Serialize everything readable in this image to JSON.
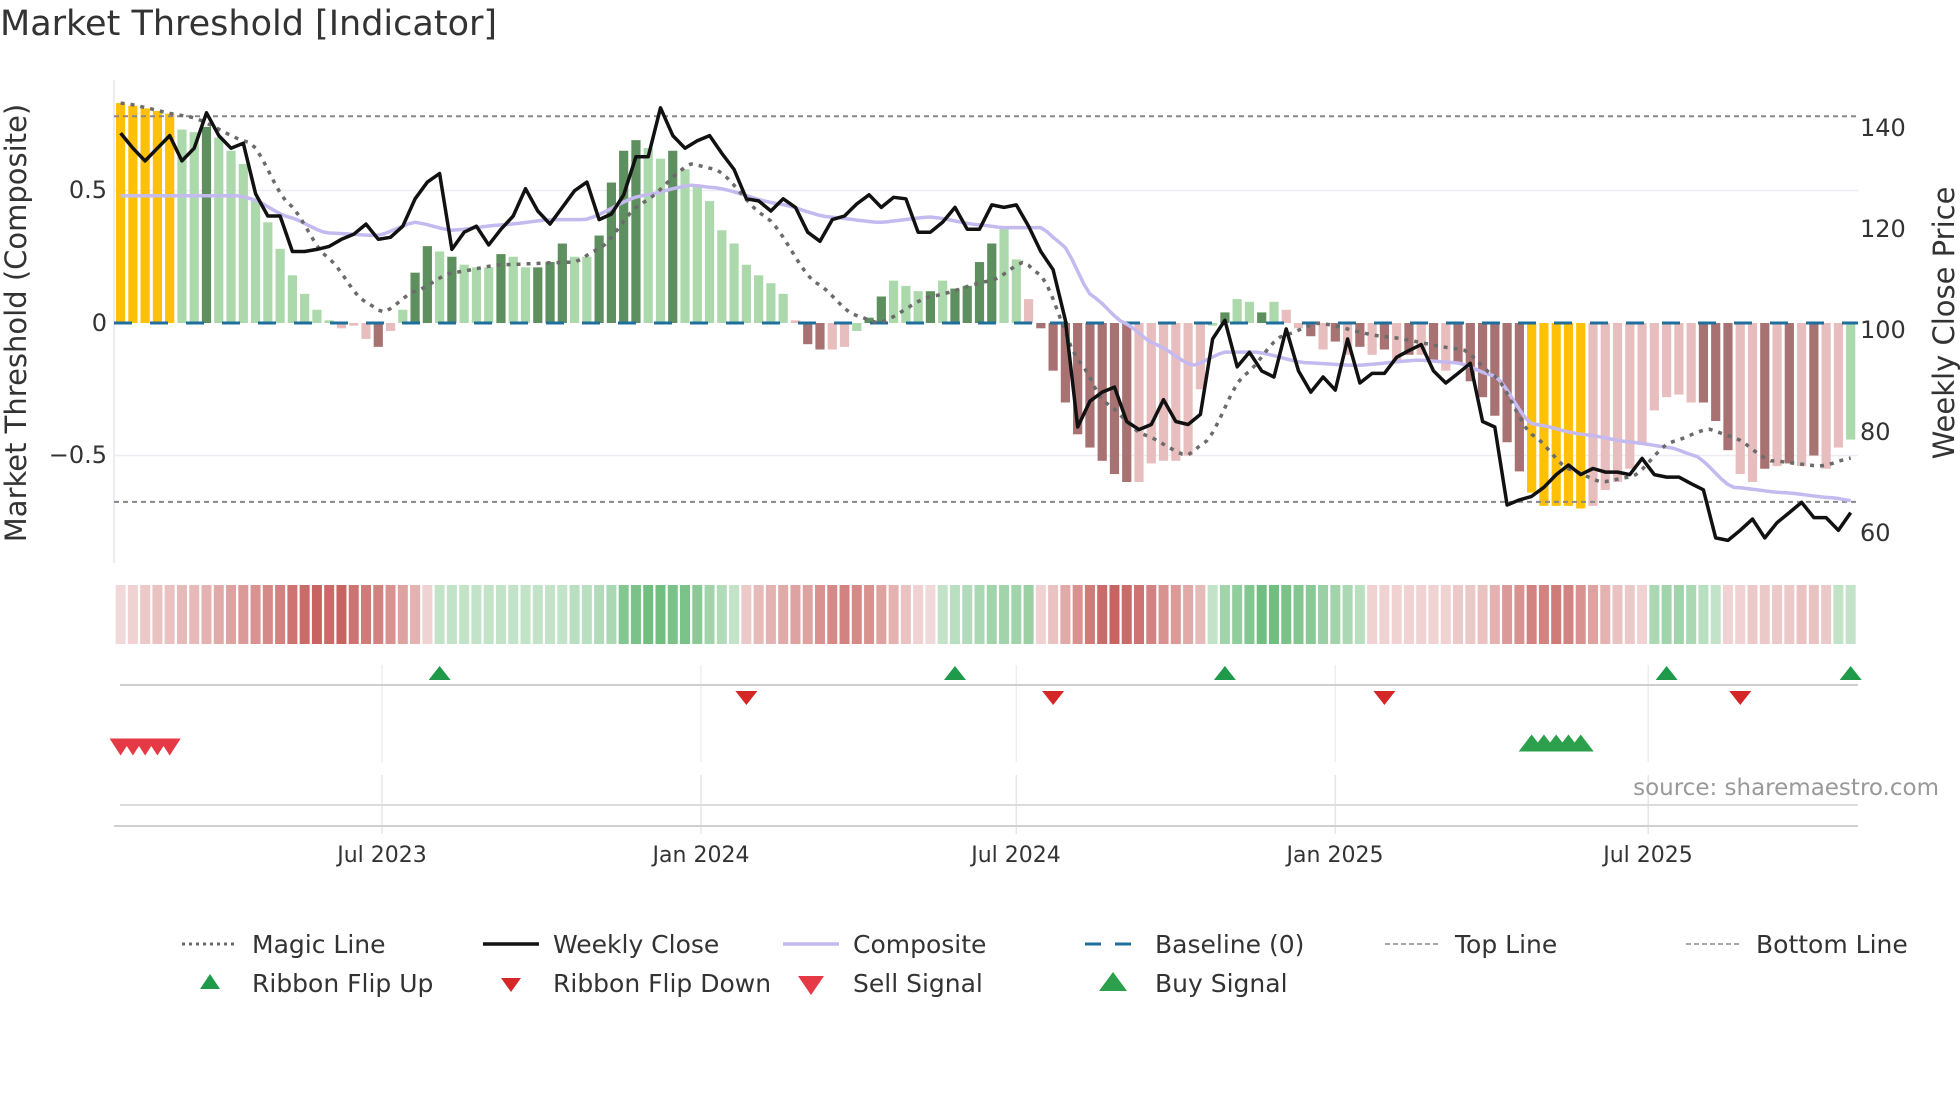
{
  "title": "Market Threshold [Indicator]",
  "source": "source: sharemaestro.com",
  "colors": {
    "extreme": "#ffc107",
    "strong_up": "#5e8f5e",
    "up": "#acd9ac",
    "strong_down": "#a87272",
    "down": "#e8bdbd",
    "close": "#111111",
    "composite_line": "#c4baf0",
    "magic": "#6b6b6b",
    "baseline": "#1f6f9c",
    "ribbon_red": "#c0504d",
    "ribbon_green": "#4fae62",
    "flip_up": "#1e9a4a",
    "flip_down": "#d62728",
    "sell": "#e63946",
    "buy": "#2ca04c"
  },
  "chart_data": {
    "type": "bar",
    "title": "Market Threshold [Indicator]",
    "x_unit": "week index (weekly bars)",
    "ylabel": "Market Threshold (Composite)",
    "y2label": "Weekly Close Price",
    "ylim": [
      -0.9,
      0.9
    ],
    "y2lim": [
      55,
      145
    ],
    "y_ticks": [
      {
        "v": 0.5,
        "label": "0.5"
      },
      {
        "v": 0,
        "label": "0"
      },
      {
        "v": -0.5,
        "label": "−0.5"
      }
    ],
    "y2_ticks": [
      {
        "v": 140,
        "label": "140"
      },
      {
        "v": 120,
        "label": "120"
      },
      {
        "v": 100,
        "label": "100"
      },
      {
        "v": 80,
        "label": "80"
      },
      {
        "v": 60,
        "label": "60"
      }
    ],
    "x_ticks": [
      {
        "week": 21.3,
        "label": "Jul 2023"
      },
      {
        "week": 47.3,
        "label": "Jan 2024"
      },
      {
        "week": 73.0,
        "label": "Jul 2024"
      },
      {
        "week": 99.0,
        "label": "Jan 2025"
      },
      {
        "week": 124.5,
        "label": "Jul 2025"
      }
    ],
    "top_line": 0.78,
    "bottom_line": -0.675,
    "baseline": 0,
    "composite_bars": [
      0.83,
      0.82,
      0.81,
      0.8,
      0.79,
      0.73,
      0.72,
      0.74,
      0.7,
      0.65,
      0.6,
      0.47,
      0.38,
      0.28,
      0.18,
      0.11,
      0.05,
      0.01,
      -0.02,
      -0.01,
      -0.06,
      -0.09,
      -0.03,
      0.05,
      0.19,
      0.29,
      0.27,
      0.25,
      0.22,
      0.21,
      0.21,
      0.26,
      0.25,
      0.21,
      0.21,
      0.23,
      0.3,
      0.25,
      0.25,
      0.33,
      0.53,
      0.65,
      0.69,
      0.66,
      0.62,
      0.65,
      0.58,
      0.52,
      0.46,
      0.35,
      0.3,
      0.22,
      0.18,
      0.15,
      0.11,
      0.01,
      -0.08,
      -0.1,
      -0.1,
      -0.09,
      -0.03,
      0.02,
      0.1,
      0.16,
      0.14,
      0.12,
      0.12,
      0.16,
      0.13,
      0.14,
      0.23,
      0.3,
      0.36,
      0.24,
      0.09,
      -0.02,
      -0.18,
      -0.3,
      -0.42,
      -0.47,
      -0.52,
      -0.57,
      -0.6,
      -0.6,
      -0.53,
      -0.52,
      -0.52,
      -0.5,
      -0.25,
      -0.01,
      0.04,
      0.09,
      0.08,
      0.04,
      0.08,
      0.05,
      -0.02,
      -0.05,
      -0.1,
      -0.07,
      -0.12,
      -0.09,
      -0.12,
      -0.1,
      -0.15,
      -0.12,
      -0.12,
      -0.14,
      -0.18,
      -0.15,
      -0.22,
      -0.28,
      -0.35,
      -0.45,
      -0.56,
      -0.64,
      -0.69,
      -0.69,
      -0.69,
      -0.7,
      -0.69,
      -0.63,
      -0.6,
      -0.55,
      -0.46,
      -0.33,
      -0.28,
      -0.27,
      -0.3,
      -0.3,
      -0.37,
      -0.48,
      -0.57,
      -0.6,
      -0.55,
      -0.54,
      -0.53,
      -0.54,
      -0.5,
      -0.55,
      -0.47,
      -0.44
    ],
    "bar_types_legend": {
      "Y": "extreme",
      "G": "strong_up",
      "g": "up",
      "R": "strong_down",
      "r": "down"
    },
    "bar_types": "YYYYYggGggggggggggrrrRrgGGgGgggGggGGGggGGGGggGgggggggggrRRrrgGGgggGgGGGGggrRRRRRRRRrrrrrrgGggGgrrRrRrRrRrRrRrRRRRRRYYYYYrrrrrrrrrRRRrrRrRrRrr",
    "weekly_close": [
      139,
      136,
      133.5,
      136,
      138.5,
      133.5,
      136,
      143,
      138.5,
      136,
      137,
      127,
      122.6,
      122.6,
      115.6,
      115.6,
      116,
      116.6,
      118,
      119,
      121,
      118,
      118.4,
      120.6,
      126,
      129.3,
      131,
      116,
      119.4,
      120.6,
      116.9,
      120,
      122.6,
      128,
      123.6,
      121,
      124.3,
      127.6,
      129.3,
      121.9,
      123,
      126.8,
      134.3,
      134.3,
      144,
      138.5,
      136,
      137.5,
      138.5,
      135,
      131.8,
      126,
      125.6,
      123.6,
      126,
      124.3,
      119.4,
      117.6,
      121.9,
      122.6,
      125,
      126.8,
      124.3,
      126.3,
      126,
      119.4,
      119.4,
      121.4,
      124.3,
      120,
      120,
      124.8,
      124.3,
      124.8,
      120.6,
      115.6,
      112,
      102,
      80.9,
      86,
      87.8,
      88.8,
      82,
      80.4,
      81.4,
      86.3,
      82,
      81.4,
      83.4,
      98.3,
      102,
      92.8,
      95.7,
      92,
      90.8,
      100.3,
      92,
      87.8,
      90.8,
      88.2,
      98.3,
      89.6,
      91.5,
      91.5,
      94.7,
      96,
      97.2,
      92,
      89.6,
      91.5,
      93.5,
      82,
      80.9,
      65.5,
      66.5,
      67.2,
      69,
      71.5,
      73.4,
      71.5,
      72.7,
      72,
      72,
      71.5,
      74.7,
      71.5,
      71,
      71,
      69.7,
      68.5,
      59,
      58.5,
      60.5,
      62.7,
      59,
      62,
      64,
      66,
      63,
      63,
      60.5,
      64
    ],
    "magic_line": [
      [
        0,
        0.83
      ],
      [
        5.5,
        0.78
      ],
      [
        10.6,
        0.68
      ],
      [
        13.7,
        0.45
      ],
      [
        16.8,
        0.25
      ],
      [
        19.9,
        0.08
      ],
      [
        21.4,
        0.04
      ],
      [
        24,
        0.12
      ],
      [
        27,
        0.19
      ],
      [
        31,
        0.22
      ],
      [
        37,
        0.23
      ],
      [
        39,
        0.28
      ],
      [
        42.4,
        0.45
      ],
      [
        46.5,
        0.6
      ],
      [
        48.5,
        0.58
      ],
      [
        52.6,
        0.4
      ],
      [
        56.7,
        0.15
      ],
      [
        59.8,
        0.03
      ],
      [
        61.8,
        0.0
      ],
      [
        66,
        0.1
      ],
      [
        71,
        0.16
      ],
      [
        73.6,
        0.23
      ],
      [
        75,
        0.18
      ],
      [
        78.2,
        -0.15
      ],
      [
        80.2,
        -0.3
      ],
      [
        83.3,
        -0.42
      ],
      [
        86.9,
        -0.5
      ],
      [
        88.4,
        -0.45
      ],
      [
        91.5,
        -0.2
      ],
      [
        94.6,
        -0.05
      ],
      [
        97.6,
        0.0
      ],
      [
        102.8,
        -0.05
      ],
      [
        109.4,
        -0.1
      ],
      [
        112,
        -0.2
      ],
      [
        115,
        -0.42
      ],
      [
        118,
        -0.55
      ],
      [
        120.7,
        -0.6
      ],
      [
        123.2,
        -0.58
      ],
      [
        126.3,
        -0.45
      ],
      [
        129.4,
        -0.4
      ],
      [
        131.4,
        -0.43
      ],
      [
        134.5,
        -0.52
      ],
      [
        138.6,
        -0.54
      ],
      [
        141,
        -0.51
      ]
    ],
    "composite_line": [
      [
        0,
        0.48
      ],
      [
        9.6,
        0.48
      ],
      [
        10.6,
        0.47
      ],
      [
        13.7,
        0.4
      ],
      [
        16.8,
        0.34
      ],
      [
        20.9,
        0.33
      ],
      [
        24,
        0.38
      ],
      [
        27,
        0.35
      ],
      [
        31,
        0.37
      ],
      [
        35.2,
        0.39
      ],
      [
        37.8,
        0.39
      ],
      [
        42.4,
        0.48
      ],
      [
        46.5,
        0.52
      ],
      [
        48.5,
        0.51
      ],
      [
        53.6,
        0.45
      ],
      [
        57.7,
        0.4
      ],
      [
        61.8,
        0.38
      ],
      [
        66,
        0.4
      ],
      [
        70,
        0.37
      ],
      [
        72,
        0.36
      ],
      [
        75,
        0.36
      ],
      [
        76.7,
        0.3
      ],
      [
        79.2,
        0.1
      ],
      [
        81.8,
        0.0
      ],
      [
        84.3,
        -0.08
      ],
      [
        87.4,
        -0.16
      ],
      [
        90,
        -0.11
      ],
      [
        92.5,
        -0.11
      ],
      [
        96.6,
        -0.15
      ],
      [
        100.7,
        -0.16
      ],
      [
        105.8,
        -0.14
      ],
      [
        108.9,
        -0.15
      ],
      [
        112,
        -0.2
      ],
      [
        115,
        -0.38
      ],
      [
        119.1,
        -0.42
      ],
      [
        123.2,
        -0.45
      ],
      [
        126.3,
        -0.47
      ],
      [
        128.3,
        -0.5
      ],
      [
        131.4,
        -0.62
      ],
      [
        135.5,
        -0.64
      ],
      [
        139.6,
        -0.66
      ],
      [
        141,
        -0.67
      ]
    ],
    "ribbon": [
      -0.15,
      -0.2,
      -0.25,
      -0.3,
      -0.3,
      -0.35,
      -0.35,
      -0.4,
      -0.45,
      -0.5,
      -0.55,
      -0.6,
      -0.65,
      -0.7,
      -0.8,
      -0.85,
      -0.9,
      -0.85,
      -0.9,
      -0.8,
      -0.75,
      -0.7,
      -0.6,
      -0.5,
      -0.4,
      -0.2,
      0.3,
      0.3,
      0.3,
      0.3,
      0.3,
      0.3,
      0.3,
      0.3,
      0.3,
      0.3,
      0.3,
      0.35,
      0.35,
      0.4,
      0.45,
      0.7,
      0.75,
      0.8,
      0.8,
      0.75,
      0.75,
      0.65,
      0.5,
      0.4,
      0.3,
      -0.25,
      -0.35,
      -0.4,
      -0.45,
      -0.5,
      -0.5,
      -0.6,
      -0.65,
      -0.7,
      -0.65,
      -0.6,
      -0.5,
      -0.4,
      -0.3,
      -0.2,
      -0.15,
      0.3,
      0.35,
      0.4,
      0.45,
      0.5,
      0.5,
      0.5,
      0.55,
      -0.2,
      -0.3,
      -0.45,
      -0.6,
      -0.75,
      -0.85,
      -0.9,
      -0.85,
      -0.8,
      -0.7,
      -0.6,
      -0.55,
      -0.45,
      -0.35,
      0.3,
      0.5,
      0.6,
      0.7,
      0.8,
      0.8,
      0.75,
      0.7,
      0.65,
      0.55,
      0.5,
      0.45,
      0.35,
      -0.2,
      -0.2,
      -0.2,
      -0.2,
      -0.2,
      -0.2,
      -0.2,
      -0.25,
      -0.25,
      -0.3,
      -0.4,
      -0.55,
      -0.6,
      -0.7,
      -0.7,
      -0.75,
      -0.7,
      -0.6,
      -0.5,
      -0.4,
      -0.3,
      -0.25,
      -0.2,
      0.45,
      0.5,
      0.5,
      0.45,
      0.35,
      0.3,
      -0.2,
      -0.2,
      -0.25,
      -0.25,
      -0.25,
      -0.25,
      -0.3,
      -0.3,
      -0.25,
      0.3,
      0.3
    ],
    "ribbon_flip_up_weeks": [
      26,
      68,
      90,
      126,
      141
    ],
    "ribbon_flip_down_weeks": [
      51,
      76,
      103,
      132
    ],
    "sell_signal_weeks": [
      0,
      1,
      2,
      3,
      4
    ],
    "buy_signal_weeks": [
      115,
      116,
      117,
      118,
      119
    ],
    "legend": {
      "placement": "bottom",
      "items": [
        {
          "key": "magic",
          "label": "Magic Line"
        },
        {
          "key": "close",
          "label": "Weekly Close"
        },
        {
          "key": "composite",
          "label": "Composite"
        },
        {
          "key": "baseline",
          "label": "Baseline (0)"
        },
        {
          "key": "top",
          "label": "Top Line"
        },
        {
          "key": "bottom",
          "label": "Bottom Line"
        },
        {
          "key": "flip_up",
          "label": "Ribbon Flip Up"
        },
        {
          "key": "flip_down",
          "label": "Ribbon Flip Down"
        },
        {
          "key": "sell",
          "label": "Sell Signal"
        },
        {
          "key": "buy",
          "label": "Buy Signal"
        }
      ]
    }
  }
}
